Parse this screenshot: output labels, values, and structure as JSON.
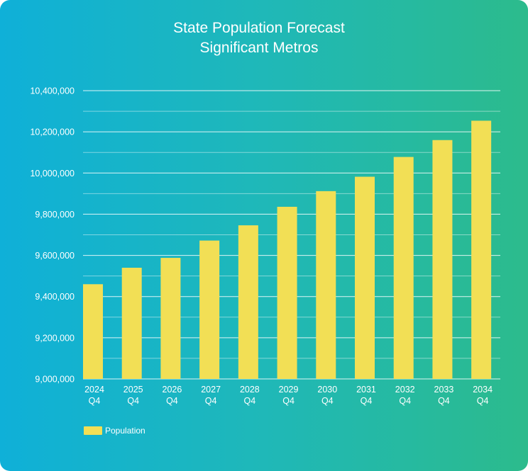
{
  "colors": {
    "bar": "#f2df55",
    "grid": "#ffffff",
    "text": "#ffffff"
  },
  "chart_data": {
    "type": "bar",
    "title": "State Population Forecast",
    "subtitle": "Significant Metros",
    "xlabel": "",
    "ylabel": "",
    "categories": [
      [
        "2024",
        "Q4"
      ],
      [
        "2025",
        "Q4"
      ],
      [
        "2026",
        "Q4"
      ],
      [
        "2027",
        "Q4"
      ],
      [
        "2028",
        "Q4"
      ],
      [
        "2029",
        "Q4"
      ],
      [
        "2030",
        "Q4"
      ],
      [
        "2031",
        "Q4"
      ],
      [
        "2032",
        "Q4"
      ],
      [
        "2033",
        "Q4"
      ],
      [
        "2034",
        "Q4"
      ]
    ],
    "series": [
      {
        "name": "Population",
        "values": [
          9460000,
          9540000,
          9588000,
          9672000,
          9746000,
          9836000,
          9912000,
          9982000,
          10078000,
          10160000,
          10254000
        ]
      }
    ],
    "ylim": [
      9000000,
      10400000
    ],
    "yticks": [
      "9,000,000",
      "9,200,000",
      "9,400,000",
      "9,600,000",
      "9,800,000",
      "10,000,000",
      "10,200,000",
      "10,400,000"
    ],
    "ytick_values": [
      9000000,
      9200000,
      9400000,
      9600000,
      9800000,
      10000000,
      10200000,
      10400000
    ],
    "grid": true,
    "legend_position": "bottom-left"
  }
}
